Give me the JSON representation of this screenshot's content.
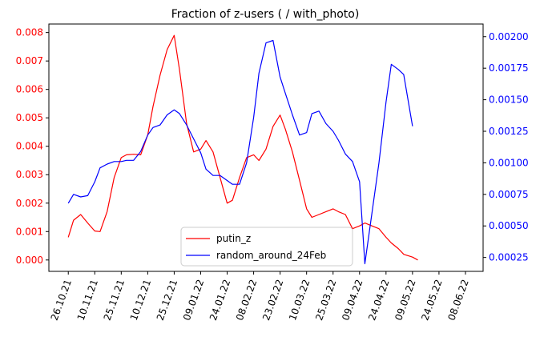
{
  "chart_data": {
    "type": "line",
    "title": "Fraction of z-users ( / with_photo)",
    "colors": {
      "left_axis": "#ff0000",
      "right_axis": "#0000ff",
      "putin_z": "#ff0000",
      "random_around_24Feb": "#0000ff"
    },
    "legend_position": "lower-center",
    "grid": false,
    "x_tick_labels": [
      "26.10.21",
      "10.11.21",
      "25.11.21",
      "10.12.21",
      "25.12.21",
      "09.01.22",
      "24.01.22",
      "08.02.22",
      "23.02.22",
      "10.03.22",
      "25.03.22",
      "09.04.22",
      "24.04.22",
      "09.05.22",
      "24.05.22",
      "08.06.22"
    ],
    "left_axis": {
      "ylim": [
        -0.0004,
        0.0083
      ],
      "ticks": [
        "0.000",
        "0.001",
        "0.002",
        "0.003",
        "0.004",
        "0.005",
        "0.006",
        "0.007",
        "0.008"
      ]
    },
    "right_axis": {
      "ylim": [
        0.00014,
        0.0021
      ],
      "ticks": [
        "0.00025",
        "0.00050",
        "0.00075",
        "0.00100",
        "0.00125",
        "0.00150",
        "0.00175",
        "0.00200"
      ]
    },
    "series": [
      {
        "name": "putin_z",
        "axis": "left",
        "x": [
          "26.10.21",
          "29.10.21",
          "02.11.21",
          "06.11.21",
          "10.11.21",
          "13.11.21",
          "17.11.21",
          "21.11.21",
          "25.11.21",
          "28.11.21",
          "02.12.21",
          "06.12.21",
          "10.12.21",
          "13.12.21",
          "17.12.21",
          "21.12.21",
          "25.12.21",
          "28.12.21",
          "01.01.22",
          "05.01.22",
          "09.01.22",
          "12.01.22",
          "16.01.22",
          "20.01.22",
          "24.01.22",
          "27.01.22",
          "31.01.22",
          "04.02.22",
          "08.02.22",
          "11.02.22",
          "15.02.22",
          "19.02.22",
          "23.02.22",
          "26.02.22",
          "02.03.22",
          "06.03.22",
          "10.03.22",
          "13.03.22",
          "17.03.22",
          "21.03.22",
          "25.03.22",
          "28.03.22",
          "01.04.22",
          "05.04.22",
          "09.04.22",
          "12.04.22",
          "16.04.22",
          "20.04.22",
          "24.04.22",
          "27.04.22",
          "01.05.22",
          "04.05.22",
          "09.05.22",
          "12.05.22",
          "16.05.22",
          "20.05.22",
          "24.05.22",
          "27.05.22",
          "01.06.22"
        ],
        "values": [
          0.0008,
          0.0014,
          0.0016,
          0.0013,
          0.00102,
          0.001,
          0.0017,
          0.0029,
          0.0036,
          0.0037,
          0.00372,
          0.0037,
          0.0044,
          0.0054,
          0.0065,
          0.0074,
          0.0079,
          0.0067,
          0.0048,
          0.0038,
          0.0039,
          0.0042,
          0.0038,
          0.0029,
          0.002,
          0.0021,
          0.0029,
          0.0036,
          0.0037,
          0.0035,
          0.0039,
          0.0047,
          0.0051,
          0.0046,
          0.0038,
          0.0028,
          0.0018,
          0.0015,
          0.0016,
          0.0017,
          0.0018,
          0.0017,
          0.0016,
          0.0011,
          0.0012,
          0.0013,
          0.0012,
          0.0011,
          0.0008,
          0.0006,
          0.0004,
          0.0002,
          0.0001,
          0.0,
          null,
          null,
          null,
          null,
          null
        ]
      },
      {
        "name": "random_around_24Feb",
        "axis": "right",
        "x": [
          "26.10.21",
          "29.10.21",
          "02.11.21",
          "06.11.21",
          "10.11.21",
          "13.11.21",
          "17.11.21",
          "21.11.21",
          "25.11.21",
          "28.11.21",
          "02.12.21",
          "06.12.21",
          "10.12.21",
          "13.12.21",
          "17.12.21",
          "21.12.21",
          "25.12.21",
          "28.12.21",
          "01.01.22",
          "05.01.22",
          "09.01.22",
          "12.01.22",
          "16.01.22",
          "20.01.22",
          "24.01.22",
          "27.01.22",
          "31.01.22",
          "04.02.22",
          "08.02.22",
          "11.02.22",
          "15.02.22",
          "19.02.22",
          "23.02.22",
          "26.02.22",
          "02.03.22",
          "06.03.22",
          "10.03.22",
          "13.03.22",
          "17.03.22",
          "21.03.22",
          "25.03.22",
          "28.03.22",
          "01.04.22",
          "05.04.22",
          "09.04.22",
          "12.04.22",
          "16.04.22",
          "20.04.22",
          "24.04.22",
          "27.04.22",
          "01.05.22",
          "04.05.22",
          "09.05.22",
          "12.05.22",
          "16.05.22",
          "20.05.22",
          "24.05.22",
          "27.05.22",
          "01.06.22"
        ],
        "values": [
          0.00068,
          0.00075,
          0.00073,
          0.00074,
          0.00085,
          0.00096,
          0.00099,
          0.00101,
          0.00101,
          0.00102,
          0.00102,
          0.00109,
          0.00122,
          0.00128,
          0.0013,
          0.00138,
          0.00142,
          0.00139,
          0.0013,
          0.00119,
          0.00108,
          0.00095,
          0.0009,
          0.0009,
          0.00086,
          0.00083,
          0.00083,
          0.001,
          0.00136,
          0.00171,
          0.00195,
          0.00197,
          0.00168,
          0.00155,
          0.00138,
          0.00122,
          0.00124,
          0.00139,
          0.00141,
          0.00131,
          0.00125,
          0.00118,
          0.00107,
          0.00101,
          0.00085,
          0.0002,
          0.0006,
          0.001,
          0.00148,
          0.00178,
          0.00174,
          0.0017,
          0.00129,
          null,
          null,
          null,
          null,
          null,
          null
        ]
      }
    ]
  }
}
